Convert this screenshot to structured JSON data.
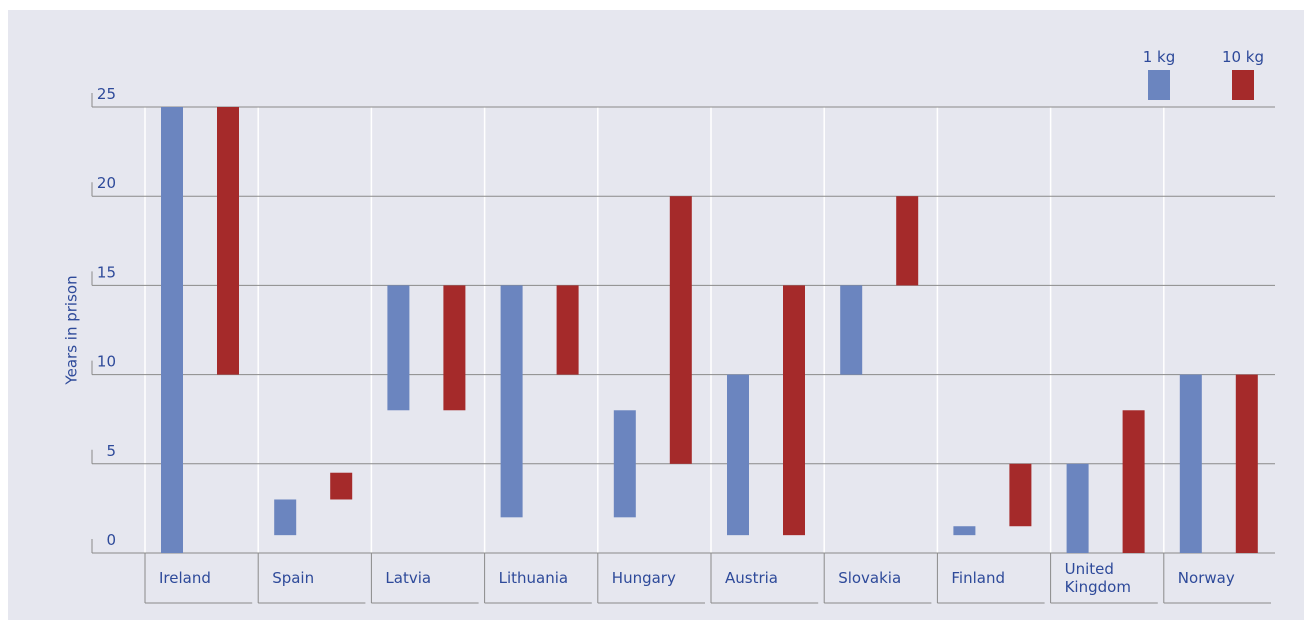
{
  "chart_data": {
    "type": "floating-bar",
    "y_label": "Years in prison",
    "categories": [
      "Ireland",
      "Spain",
      "Latvia",
      "Lithuania",
      "Hungary",
      "Austria",
      "Slovakia",
      "Finland",
      "United Kingdom",
      "Norway"
    ],
    "series": [
      {
        "name": "1 kg",
        "color": "#6b85bf",
        "low": [
          0,
          1,
          8,
          2,
          2,
          1,
          10,
          1,
          0,
          0
        ],
        "high": [
          25,
          3,
          15,
          15,
          8,
          10,
          15,
          1.5,
          5,
          10
        ]
      },
      {
        "name": "10 kg",
        "color": "#a52a2a",
        "low": [
          10,
          3,
          8,
          10,
          5,
          1,
          15,
          1.5,
          0,
          0
        ],
        "high": [
          25,
          4.5,
          15,
          15,
          20,
          15,
          20,
          5,
          8,
          10
        ]
      }
    ],
    "ylim": [
      0,
      25
    ],
    "yticks": [
      0,
      5,
      10,
      15,
      20,
      25
    ],
    "grid": true,
    "legend": "top-right"
  }
}
